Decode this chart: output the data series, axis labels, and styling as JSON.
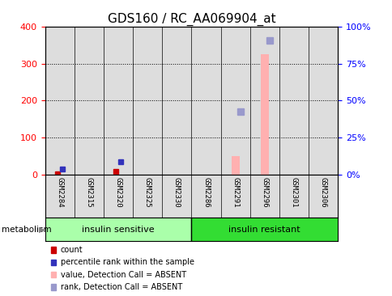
{
  "title": "GDS160 / RC_AA069904_at",
  "samples": [
    "GSM2284",
    "GSM2315",
    "GSM2320",
    "GSM2325",
    "GSM2330",
    "GSM2286",
    "GSM2291",
    "GSM2296",
    "GSM2301",
    "GSM2306"
  ],
  "group1_name": "insulin sensitive",
  "group1_color": "#aaffaa",
  "group1_indices": [
    0,
    1,
    2,
    3,
    4
  ],
  "group2_name": "insulin resistant",
  "group2_color": "#33dd33",
  "group2_indices": [
    5,
    6,
    7,
    8,
    9
  ],
  "group_label": "metabolism",
  "left_ylim": [
    0,
    400
  ],
  "left_yticks": [
    0,
    100,
    200,
    300,
    400
  ],
  "right_yticklabels": [
    "0%",
    "25%",
    "50%",
    "75%",
    "100%"
  ],
  "count_color": "#cc0000",
  "rank_color": "#3333bb",
  "absent_value_color": "#ffb0b0",
  "absent_rank_color": "#9999cc",
  "count_data": [
    {
      "sample_idx": 0,
      "value": 2
    },
    {
      "sample_idx": 2,
      "value": 8
    }
  ],
  "rank_data": [
    {
      "sample_idx": 0,
      "value": 15
    },
    {
      "sample_idx": 2,
      "value": 35
    }
  ],
  "absent_value_data": [
    {
      "sample_idx": 6,
      "value": 50
    },
    {
      "sample_idx": 7,
      "value": 325
    }
  ],
  "absent_rank_data": [
    {
      "sample_idx": 6,
      "value": 170
    },
    {
      "sample_idx": 7,
      "value": 362
    }
  ],
  "legend_items": [
    {
      "label": "count",
      "color": "#cc0000"
    },
    {
      "label": "percentile rank within the sample",
      "color": "#3333bb"
    },
    {
      "label": "value, Detection Call = ABSENT",
      "color": "#ffb0b0"
    },
    {
      "label": "rank, Detection Call = ABSENT",
      "color": "#9999cc"
    }
  ],
  "plot_bg_color": "#ffffff",
  "sample_col_color": "#dddddd",
  "title_fontsize": 11,
  "tick_fontsize": 8,
  "label_fontsize": 7
}
